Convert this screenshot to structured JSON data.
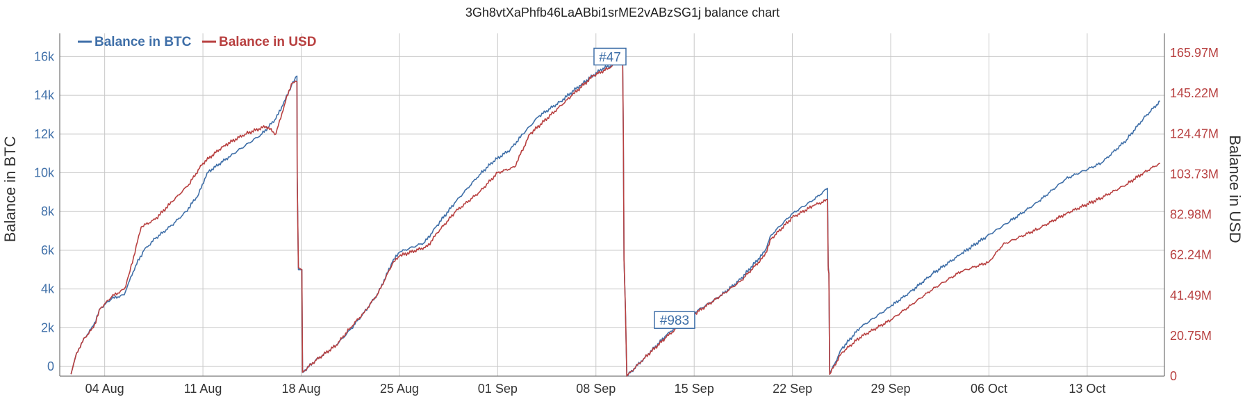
{
  "chart_data": {
    "type": "line",
    "title": "3Gh8vtXaPhfb46LaABbi1srME2vABzSG1j balance chart",
    "y_left_label": "Balance in BTC",
    "y_right_label": "Balance in USD",
    "x_ticks": [
      "04 Aug",
      "11 Aug",
      "18 Aug",
      "25 Aug",
      "01 Sep",
      "08 Sep",
      "15 Sep",
      "22 Sep",
      "29 Sep",
      "06 Oct",
      "13 Oct"
    ],
    "x_tick_offsets_days": [
      0,
      7,
      14,
      21,
      28,
      35,
      42,
      49,
      56,
      63,
      70
    ],
    "x_range_days": [
      -3.2,
      75.5
    ],
    "y_left_ticks": [
      "0",
      "2k",
      "4k",
      "6k",
      "8k",
      "10k",
      "12k",
      "14k",
      "16k"
    ],
    "y_left_tick_values": [
      0,
      2000,
      4000,
      6000,
      8000,
      10000,
      12000,
      14000,
      16000
    ],
    "y_left_range": [
      -500,
      17200
    ],
    "y_right_ticks": [
      "0",
      "20.75M",
      "41.49M",
      "62.24M",
      "82.98M",
      "103.73M",
      "124.47M",
      "145.22M",
      "165.97M"
    ],
    "y_right_tick_values_millions": [
      0,
      20.75,
      41.49,
      62.24,
      82.98,
      103.73,
      124.47,
      145.22,
      165.97
    ],
    "y_right_range_millions": [
      0,
      176
    ],
    "grid": true,
    "legend_position": "top-left",
    "series": [
      {
        "name": "Balance in BTC",
        "axis": "left",
        "color": "#3f6fa8",
        "points": [
          [
            -2.4,
            -400
          ],
          [
            -2.0,
            700
          ],
          [
            -1.4,
            1500
          ],
          [
            -0.8,
            2100
          ],
          [
            -0.3,
            3000
          ],
          [
            0.5,
            3500
          ],
          [
            1.4,
            3700
          ],
          [
            1.6,
            4100
          ],
          [
            2.2,
            5200
          ],
          [
            2.8,
            6000
          ],
          [
            3.6,
            6600
          ],
          [
            4.8,
            7300
          ],
          [
            5.8,
            8000
          ],
          [
            6.7,
            8900
          ],
          [
            7.3,
            10000
          ],
          [
            9.0,
            10900
          ],
          [
            11.2,
            12000
          ],
          [
            12.2,
            12800
          ],
          [
            12.7,
            13500
          ],
          [
            13.3,
            14500
          ],
          [
            13.7,
            15000
          ],
          [
            13.72,
            9800
          ],
          [
            13.8,
            5000
          ],
          [
            14.05,
            5000
          ],
          [
            14.1,
            -300
          ],
          [
            15.0,
            300
          ],
          [
            16.5,
            1100
          ],
          [
            17.5,
            1900
          ],
          [
            18.5,
            2800
          ],
          [
            19.5,
            3800
          ],
          [
            20.5,
            5400
          ],
          [
            21.0,
            5900
          ],
          [
            22.8,
            6400
          ],
          [
            23.7,
            7300
          ],
          [
            25.0,
            8500
          ],
          [
            26.7,
            9900
          ],
          [
            27.7,
            10600
          ],
          [
            28.9,
            11200
          ],
          [
            29.8,
            12000
          ],
          [
            30.9,
            12900
          ],
          [
            32.5,
            13700
          ],
          [
            34.0,
            14600
          ],
          [
            35.5,
            15400
          ],
          [
            36.9,
            15700
          ],
          [
            36.95,
            12000
          ],
          [
            37.0,
            5500
          ],
          [
            37.1,
            3000
          ],
          [
            37.2,
            -500
          ],
          [
            38.4,
            400
          ],
          [
            40.0,
            1600
          ],
          [
            41.4,
            2500
          ],
          [
            43.8,
            3600
          ],
          [
            45.3,
            4500
          ],
          [
            47.0,
            5900
          ],
          [
            47.5,
            6800
          ],
          [
            49.0,
            7900
          ],
          [
            50.5,
            8600
          ],
          [
            51.5,
            9200
          ],
          [
            51.55,
            5200
          ],
          [
            51.6,
            4800
          ],
          [
            51.65,
            -400
          ],
          [
            52.5,
            900
          ],
          [
            53.8,
            2000
          ],
          [
            56.0,
            3100
          ],
          [
            57.5,
            3900
          ],
          [
            59.0,
            4800
          ],
          [
            61.0,
            5800
          ],
          [
            62.8,
            6700
          ],
          [
            64.5,
            7500
          ],
          [
            66.5,
            8500
          ],
          [
            68.5,
            9700
          ],
          [
            71.0,
            10500
          ],
          [
            72.8,
            11700
          ],
          [
            74.0,
            12800
          ],
          [
            75.2,
            13700
          ]
        ]
      },
      {
        "name": "Balance in USD",
        "axis": "right",
        "color": "#b84040",
        "points": [
          [
            -2.4,
            -400
          ],
          [
            -2.0,
            700
          ],
          [
            -1.4,
            1500
          ],
          [
            -0.8,
            2000
          ],
          [
            -0.3,
            3000
          ],
          [
            0.5,
            3600
          ],
          [
            1.4,
            4000
          ],
          [
            1.8,
            4900
          ],
          [
            2.6,
            7200
          ],
          [
            3.6,
            7600
          ],
          [
            4.8,
            8500
          ],
          [
            6.0,
            9400
          ],
          [
            7.0,
            10500
          ],
          [
            8.5,
            11400
          ],
          [
            10.0,
            12000
          ],
          [
            11.5,
            12400
          ],
          [
            12.2,
            12000
          ],
          [
            12.8,
            13500
          ],
          [
            13.3,
            14600
          ],
          [
            13.7,
            14700
          ],
          [
            13.72,
            9800
          ],
          [
            13.8,
            5100
          ],
          [
            14.05,
            5000
          ],
          [
            14.1,
            -300
          ],
          [
            15.0,
            300
          ],
          [
            16.5,
            1100
          ],
          [
            17.5,
            2000
          ],
          [
            18.5,
            2800
          ],
          [
            19.5,
            3800
          ],
          [
            20.5,
            5300
          ],
          [
            21.0,
            5700
          ],
          [
            23.0,
            6200
          ],
          [
            23.7,
            6900
          ],
          [
            25.0,
            8000
          ],
          [
            26.7,
            9000
          ],
          [
            28.0,
            10000
          ],
          [
            29.2,
            10300
          ],
          [
            30.3,
            12000
          ],
          [
            31.8,
            13000
          ],
          [
            33.3,
            14000
          ],
          [
            34.8,
            15000
          ],
          [
            35.9,
            15400
          ],
          [
            36.9,
            15900
          ],
          [
            36.95,
            12000
          ],
          [
            37.0,
            5500
          ],
          [
            37.1,
            3000
          ],
          [
            37.2,
            -500
          ],
          [
            38.4,
            400
          ],
          [
            40.0,
            1500
          ],
          [
            41.4,
            2400
          ],
          [
            43.8,
            3600
          ],
          [
            45.3,
            4400
          ],
          [
            47.0,
            5700
          ],
          [
            47.5,
            6600
          ],
          [
            49.0,
            7700
          ],
          [
            50.5,
            8300
          ],
          [
            51.5,
            8600
          ],
          [
            51.55,
            5000
          ],
          [
            51.6,
            4800
          ],
          [
            51.65,
            -400
          ],
          [
            52.5,
            700
          ],
          [
            53.8,
            1500
          ],
          [
            56.0,
            2400
          ],
          [
            57.5,
            3200
          ],
          [
            59.0,
            4000
          ],
          [
            61.0,
            4900
          ],
          [
            63.0,
            5400
          ],
          [
            64.0,
            6300
          ],
          [
            66.5,
            7100
          ],
          [
            68.5,
            7900
          ],
          [
            71.0,
            8700
          ],
          [
            72.8,
            9400
          ],
          [
            74.0,
            10000
          ],
          [
            75.2,
            10500
          ]
        ]
      }
    ],
    "annotations": [
      {
        "text": "#47",
        "x_day": 36.0,
        "y_left": 16000,
        "color": "#3f6fa8"
      },
      {
        "text": "#983",
        "x_day": 40.6,
        "y_left": 2400,
        "color": "#3f6fa8"
      }
    ]
  },
  "colors": {
    "btc": "#3f6fa8",
    "usd": "#b84040",
    "grid": "#c8c8c8",
    "axis": "#555555"
  }
}
